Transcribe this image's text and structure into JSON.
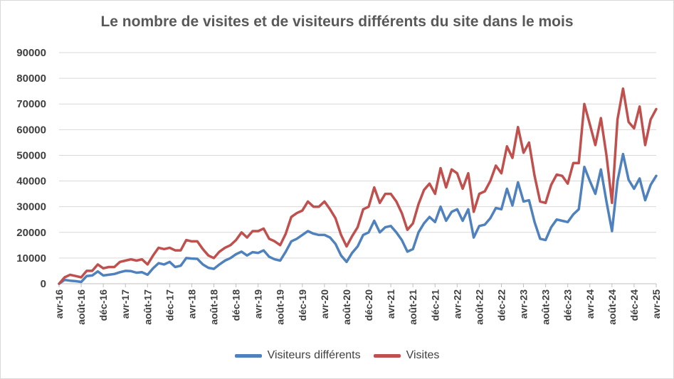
{
  "chart_data": {
    "type": "line",
    "title": "Le nombre de visites et de visiteurs différents du site dans le mois",
    "xlabel": "",
    "ylabel": "",
    "ylim": [
      0,
      90000
    ],
    "yticks": [
      0,
      10000,
      20000,
      30000,
      40000,
      50000,
      60000,
      70000,
      80000,
      90000
    ],
    "grid": true,
    "legend_position": "bottom",
    "tick_labels": [
      "avr-16",
      "août-16",
      "déc-16",
      "avr-17",
      "août-17",
      "déc-17",
      "avr-18",
      "août-18",
      "déc-18",
      "avr-19",
      "août-19",
      "déc-19",
      "avr-20",
      "août-20",
      "déc-20",
      "avr-21",
      "août-21",
      "déc-21",
      "avr-22",
      "août-22",
      "déc-22",
      "avr-23",
      "août-23",
      "déc-23",
      "avr-24",
      "août-24",
      "déc-24",
      "avr-25"
    ],
    "series": [
      {
        "name": "Visiteurs différents",
        "color": "#4f81bd",
        "values": [
          0,
          1500,
          1200,
          1000,
          700,
          3000,
          3200,
          4800,
          3200,
          3500,
          3800,
          4500,
          5000,
          4900,
          4300,
          4500,
          3500,
          6000,
          8000,
          7500,
          8500,
          6500,
          7000,
          10000,
          9800,
          9700,
          7500,
          6200,
          5800,
          7500,
          9000,
          10000,
          11500,
          12500,
          11000,
          12300,
          12000,
          13000,
          10500,
          9500,
          9000,
          12500,
          16500,
          17500,
          19000,
          20500,
          19500,
          19000,
          19000,
          18000,
          15500,
          11000,
          8500,
          12000,
          14500,
          19000,
          20000,
          24500,
          20000,
          22000,
          22500,
          20000,
          17000,
          12500,
          13500,
          20000,
          23500,
          26000,
          24000,
          30000,
          24500,
          28000,
          29000,
          24500,
          29000,
          18000,
          22500,
          23000,
          25500,
          29500,
          29000,
          37000,
          30500,
          39500,
          32000,
          32500,
          24000,
          17500,
          17000,
          22000,
          25000,
          24500,
          24000,
          27000,
          29000,
          45500,
          40000,
          35000,
          44500,
          32000,
          20500,
          40000,
          50500,
          40500,
          37000,
          41000,
          32500,
          38500,
          42000
        ]
      },
      {
        "name": "Visites",
        "color": "#c0504d",
        "values": [
          0,
          2500,
          3500,
          3000,
          2500,
          5000,
          5000,
          7500,
          6000,
          6500,
          6500,
          8500,
          9000,
          9500,
          9000,
          9500,
          7500,
          11000,
          14000,
          13500,
          14000,
          13000,
          13000,
          17000,
          16500,
          16500,
          13500,
          11000,
          10000,
          12500,
          14000,
          15000,
          17000,
          20000,
          18000,
          20500,
          20500,
          21500,
          17500,
          16500,
          15000,
          19500,
          26000,
          27500,
          28500,
          32000,
          30000,
          30000,
          32000,
          29000,
          25500,
          19000,
          14500,
          18500,
          22000,
          29000,
          30000,
          37500,
          31500,
          35000,
          35000,
          32000,
          27500,
          21000,
          23500,
          31000,
          36500,
          39000,
          35000,
          45000,
          37500,
          44500,
          43000,
          37000,
          43000,
          28000,
          35000,
          36000,
          40000,
          46000,
          43000,
          53500,
          49000,
          61000,
          51000,
          55000,
          42000,
          32000,
          31500,
          38500,
          42500,
          42000,
          39000,
          47000,
          47000,
          70000,
          62000,
          54000,
          64500,
          50000,
          31500,
          64000,
          76000,
          63000,
          60500,
          69000,
          54000,
          64000,
          68000
        ]
      }
    ]
  }
}
